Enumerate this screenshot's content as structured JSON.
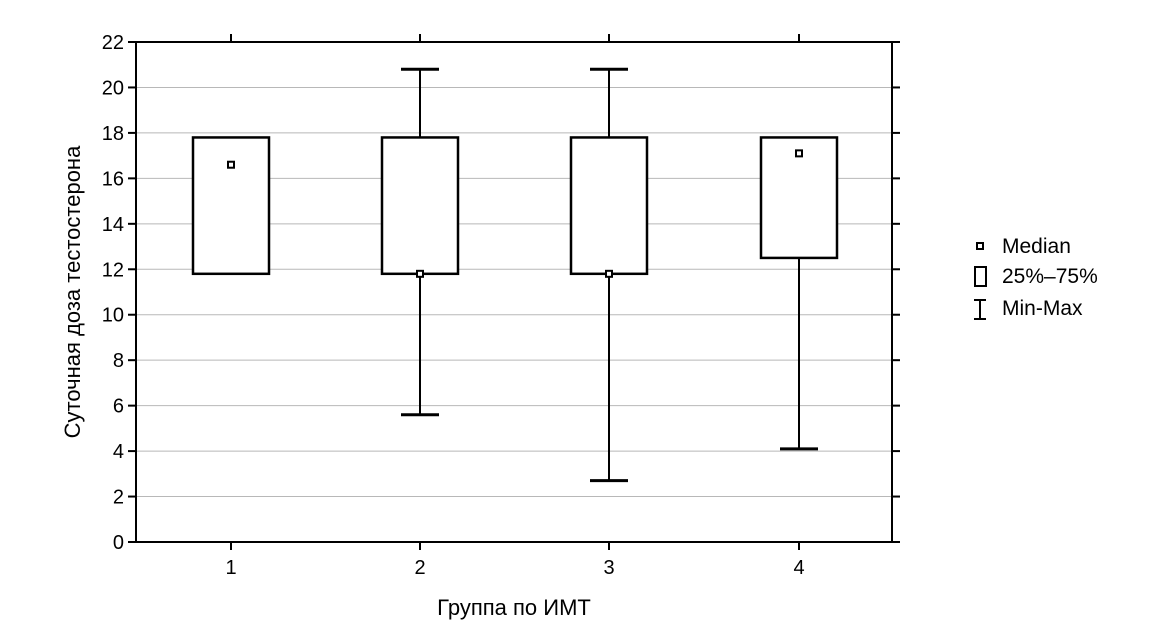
{
  "chart_data": {
    "type": "box",
    "title": "",
    "xlabel": "Группа по ИМТ",
    "ylabel": "Суточная доза тестостерона",
    "ylim": [
      0,
      22
    ],
    "yticks": [
      0,
      2,
      4,
      6,
      8,
      10,
      12,
      14,
      16,
      18,
      20,
      22
    ],
    "grid": true,
    "categories": [
      "1",
      "2",
      "3",
      "4"
    ],
    "series": [
      {
        "category": "1",
        "min": 11.8,
        "q1": 11.8,
        "median": 16.6,
        "q3": 17.8,
        "max": 17.8
      },
      {
        "category": "2",
        "min": 5.6,
        "q1": 11.8,
        "median": 11.8,
        "q3": 17.8,
        "max": 20.8
      },
      {
        "category": "3",
        "min": 2.7,
        "q1": 11.8,
        "median": 11.8,
        "q3": 17.8,
        "max": 20.8
      },
      {
        "category": "4",
        "min": 4.1,
        "q1": 12.5,
        "median": 17.1,
        "q3": 17.8,
        "max": 17.8
      }
    ],
    "legend": {
      "placement": "right",
      "entries": [
        {
          "key": "median",
          "label": "Median"
        },
        {
          "key": "box",
          "label": "25%–75%"
        },
        {
          "key": "whisker",
          "label": "Min-Max"
        }
      ]
    }
  }
}
